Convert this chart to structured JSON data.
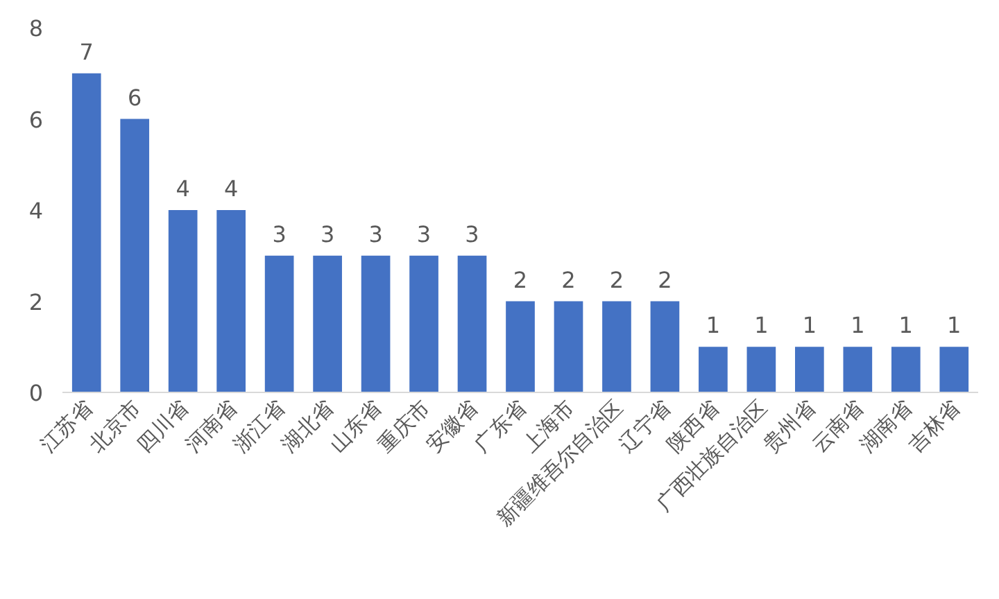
{
  "chart_data": {
    "type": "bar",
    "categories": [
      "江苏省",
      "北京市",
      "四川省",
      "河南省",
      "浙江省",
      "湖北省",
      "山东省",
      "重庆市",
      "安徽省",
      "广东省",
      "上海市",
      "新疆维吾尔自治区",
      "辽宁省",
      "陕西省",
      "广西壮族自治区",
      "贵州省",
      "云南省",
      "湖南省",
      "吉林省"
    ],
    "values": [
      7,
      6,
      4,
      4,
      3,
      3,
      3,
      3,
      3,
      2,
      2,
      2,
      2,
      1,
      1,
      1,
      1,
      1,
      1
    ],
    "color": "#4472c4",
    "ylim": [
      0,
      8
    ],
    "yticks": [
      0,
      2,
      4,
      6,
      8
    ],
    "grid": false,
    "data_labels": true
  }
}
